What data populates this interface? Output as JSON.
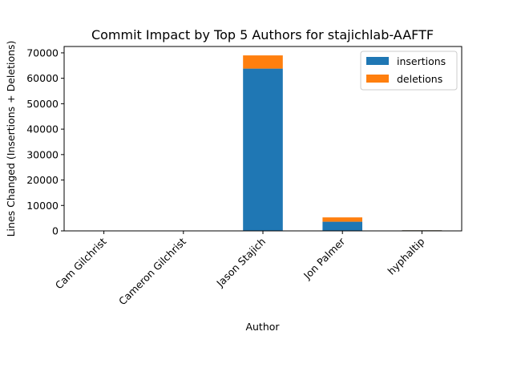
{
  "chart_data": {
    "type": "bar",
    "stacked": true,
    "title": "Commit Impact by Top 5 Authors for stajichlab-AAFTF",
    "xlabel": "Author",
    "ylabel": "Lines Changed (Insertions + Deletions)",
    "categories": [
      "Cam Gilchrist",
      "Cameron Gilchrist",
      "Jason Stajich",
      "Jon Palmer",
      "hyphaltip"
    ],
    "series": [
      {
        "name": "insertions",
        "color": "#1f77b4",
        "values": [
          30,
          20,
          63800,
          3600,
          250
        ]
      },
      {
        "name": "deletions",
        "color": "#ff7f0e",
        "values": [
          5,
          5,
          5200,
          1700,
          50
        ]
      }
    ],
    "ylim": [
      0,
      72500
    ],
    "yticks": [
      0,
      10000,
      20000,
      30000,
      40000,
      50000,
      60000,
      70000
    ],
    "grid": false,
    "legend_position": "top-right"
  }
}
